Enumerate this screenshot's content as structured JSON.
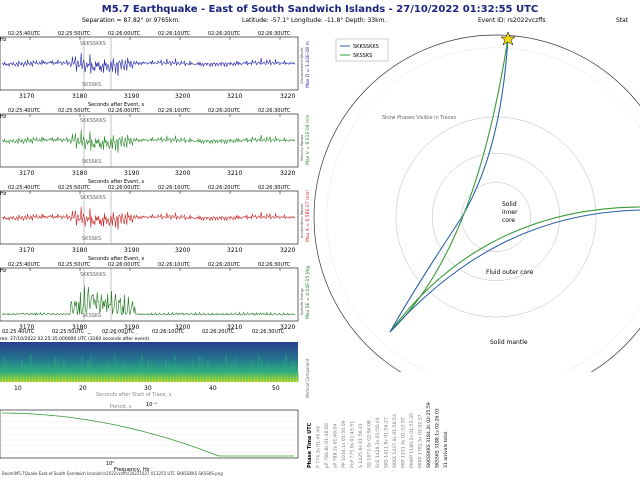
{
  "header": {
    "title": "M5.7 Earthquake - East of South Sandwich Islands -  27/10/2022 01:32:55 UTC",
    "separation": "Separation = 87.82° or 9765km.",
    "location": "Latitude: -57.1° Longitude: -11.8° Depth: 33km.",
    "event_id": "Event ID: rs2022vczffs",
    "stat_label": "Stat"
  },
  "colors": {
    "title": "#1a237e",
    "trace_displacement": "#2222aa",
    "trace_velocity": "#2a8a2a",
    "trace_acceleration": "#cc2222",
    "trace_spectral": "#1e7a1e",
    "ray_skkssks": "#2c5fa8",
    "ray_sksks": "#3a9a3a",
    "marker": "#f5d90a"
  },
  "traces": {
    "time_labels": [
      "02:25:40UTC",
      "02:25:50UTC",
      "02:26:00UTC",
      "02:26:10UTC",
      "02:26:20UTC",
      "02:26:30UTC"
    ],
    "x_ticks": [
      "3170",
      "3180",
      "3190",
      "3200",
      "3210",
      "3220"
    ],
    "xlabel": "Seconds after Event, s",
    "phase_top": "SKKSSKKS",
    "phase_bottom": "SKSSKS",
    "left_label": "Hz",
    "panels": [
      {
        "name": "displacement",
        "side_label": "Max D = 1.43E-08 m",
        "small_label": "Displacement Waves"
      },
      {
        "name": "velocity",
        "side_label": "Max V = 6.01E-08 m/s",
        "small_label": "Velocity Waves"
      },
      {
        "name": "acceleration",
        "side_label": "Max A = 6.58E-07 m/s²",
        "small_label": "Acceleration Waves"
      },
      {
        "name": "spectral",
        "side_label": "Max SE = 4.04E-15 J/kg",
        "small_label": "Specific Energy"
      }
    ]
  },
  "spectrogram": {
    "title": "me: 27/10/2022 02:25:35.000000 UTC (3160 seconds after event)",
    "x_ticks": [
      "10",
      "20",
      "30",
      "40",
      "50"
    ],
    "xlabel": "Seconds after Start of Trace, s",
    "right_label": "Vertical Component"
  },
  "spectrum": {
    "tick_top": "10⁻¹",
    "tick_bottom": "10⁰",
    "xlabel": "Frequency, Hz",
    "faint_label": "Period, s"
  },
  "ray_plot": {
    "hint": "Show Phases Visible in Traces",
    "legend": [
      "SKKSSKKS",
      "SKSSKS"
    ],
    "labels": {
      "inner_core": "Solid inner core",
      "outer_core": "Fluid outer core",
      "mantle": "Solid mantle"
    }
  },
  "arrivals": {
    "header_phase": "Phase",
    "header_time": "Time",
    "header_utc": "UTC",
    "rows": [
      {
        "phase": "P",
        "time": "774.3s",
        "utc": "01:45:49"
      },
      {
        "phase": "pP",
        "time": "784.8s",
        "utc": "01:46:00"
      },
      {
        "phase": "sP",
        "time": "789.2s",
        "utc": "01:46:04"
      },
      {
        "phase": "PP",
        "time": "1034.1s",
        "utc": "01:50:09"
      },
      {
        "phase": "PcP",
        "time": "775.9s",
        "utc": "01:45:51"
      },
      {
        "phase": "S",
        "time": "1425.6s",
        "utc": "01:56:41"
      },
      {
        "phase": "SS",
        "time": "1873.0s",
        "utc": "02:04:08"
      },
      {
        "phase": "ScS",
        "time": "1429.1s",
        "utc": "01:56:44"
      },
      {
        "phase": "SKS",
        "time": "1411.8s",
        "utc": "01:56:27"
      },
      {
        "phase": "SKKS",
        "time": "1437.6s",
        "utc": "01:56:53"
      },
      {
        "phase": "PKP",
        "time": "1151.9s",
        "utc": "01:52:07"
      },
      {
        "phase": "PKIKP",
        "time": "1180.2s",
        "utc": "01:52:35"
      },
      {
        "phase": "PKKP",
        "time": "1781.5s",
        "utc": "02:02:37"
      },
      {
        "phase": "SKKSSKKS",
        "time": "3184.2s",
        "utc": "02:25:59"
      },
      {
        "phase": "SKSSKS",
        "time": "3188.1s",
        "utc": "02:26:03"
      }
    ],
    "note": "31 arrivals total."
  },
  "footer": "Boom\\M5.7Quake East of South Sandwich Islands\\rs2022vczffs\\20221027 013255 UTC SKKSSKKS SKSSKS.png"
}
